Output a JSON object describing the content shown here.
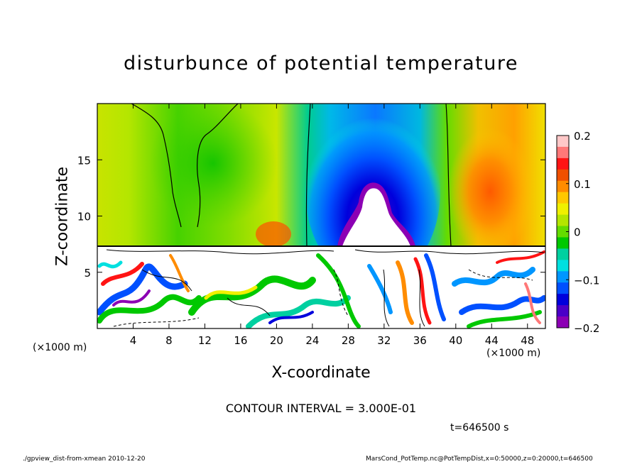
{
  "chart_data": {
    "type": "heatmap",
    "title": "disturbunce of potential temperature",
    "xlabel": "X-coordinate",
    "ylabel": "Z-coordinate",
    "x_unit_label_left": "(×1000 m)",
    "x_unit_label_right": "(×1000 m)",
    "xlim": [
      0,
      50
    ],
    "ylim": [
      0,
      20
    ],
    "xticks": [
      4,
      8,
      12,
      16,
      20,
      24,
      28,
      32,
      36,
      40,
      44,
      48
    ],
    "yticks": [
      5,
      10,
      15
    ],
    "colorbar": {
      "ticks": [
        0.2,
        0.1,
        0,
        -0.1,
        -0.2
      ],
      "tick_labels": [
        "0.2",
        "0.1",
        "0",
        "−0.1",
        "−0.2"
      ],
      "range": [
        -0.2,
        0.2
      ],
      "colors": [
        "#ffc8c8",
        "#ff7878",
        "#ff1414",
        "#f05000",
        "#ff8c00",
        "#ffc800",
        "#f0f000",
        "#b4e600",
        "#64dc00",
        "#00c800",
        "#00d0a0",
        "#00e0e0",
        "#0096ff",
        "#0050ff",
        "#0000dc",
        "#4b00c8",
        "#8c00b4"
      ]
    },
    "contour_interval": "CONTOUR INTERVAL = 3.000E-01",
    "time_label": "t=646500 s",
    "grid": false
  },
  "footer": {
    "left": "./gpview_dist-from-xmean  2010-12-20",
    "right": "MarsCond_PotTemp.nc@PotTempDist,x=0:50000,z=0:20000,t=646500"
  },
  "colors": {
    "cold": "#8c00b4",
    "neutral": "#00c800",
    "warm": "#ff1414"
  }
}
